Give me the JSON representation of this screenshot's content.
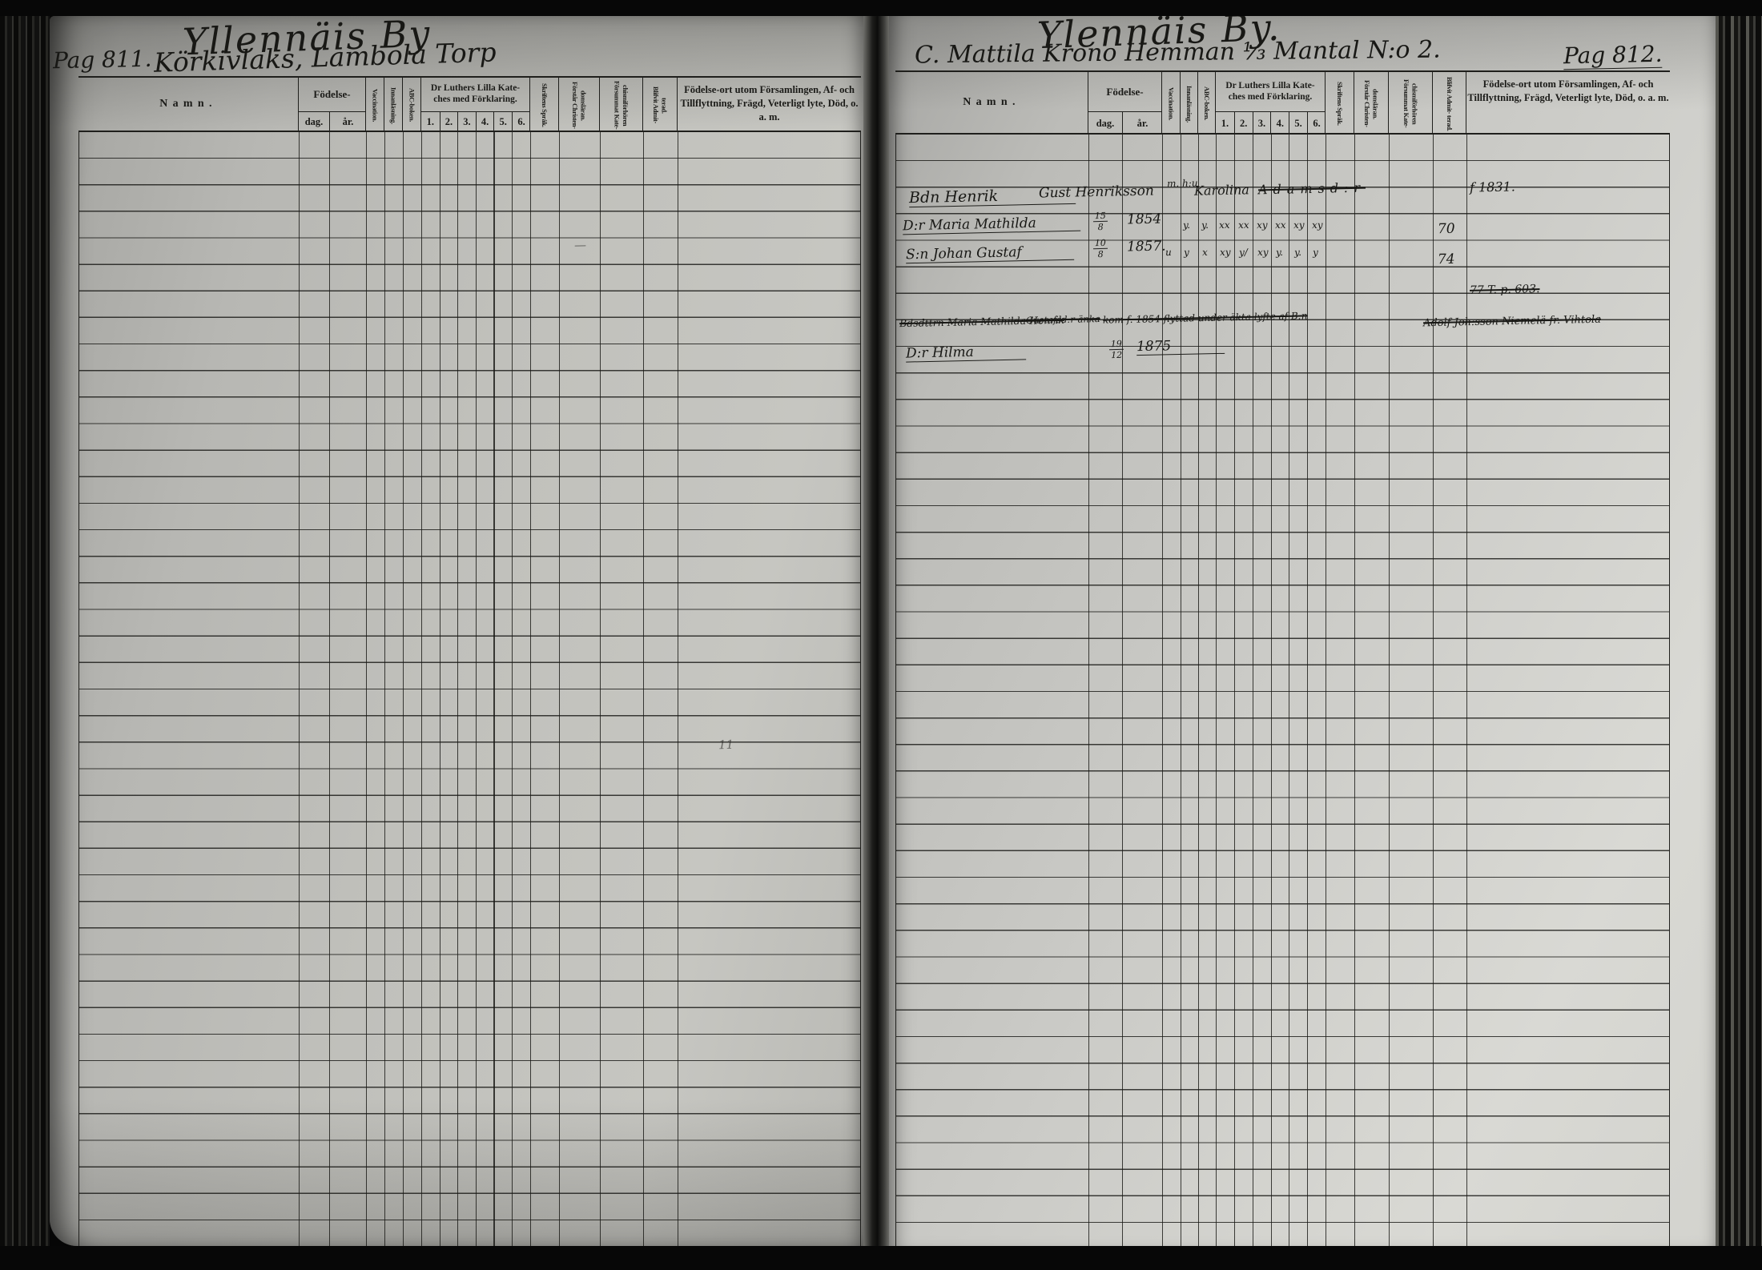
{
  "colors": {
    "ink": "#1b1b18",
    "line": "#1f1f1c",
    "linesoft": "rgba(24,24,21,0.82)",
    "paper_left": "#bfbfbb",
    "paper_right": "#d3d3ce",
    "frame": "#070707"
  },
  "table_header": {
    "namn": "Namn.",
    "fodelse": "Födelse-",
    "dag": "dag.",
    "ar": "år.",
    "vaccination": "Vaccination.",
    "innanlasning": "Innanläsning.",
    "abc": "ABC-boken.",
    "luthers": "Dr Luthers Lilla Kate- ches med Förklaring.",
    "luthers_cols": [
      "1.",
      "2.",
      "3.",
      "4.",
      "5.",
      "6."
    ],
    "skriftens": "Skriftens Språk.",
    "forstar": "Förstår Christen- domsläran.",
    "forsummat": "Försummat Kate- chismiförhören",
    "blifvit": "Blifvit Admit- terad.",
    "remarks": "Födelse-ort utom Församlingen, Af- och Tillflyttning, Frägd, Veterligt lyte, Död, o. a. m."
  },
  "left_page": {
    "village_title": "Yllennäis By",
    "pag": "Pag 811.",
    "holding_title": "Körkivlaks, Lambola Torp",
    "stray_dash": "—",
    "stray_note": "11"
  },
  "right_page": {
    "village_title": "Ylennäis By.",
    "holding_title": "C. Mattila Krono Hemman ⅓ Mantal N:o 2.",
    "pag": "Pag 812.",
    "entries": {
      "e1": {
        "name": "Bdn Henrik",
        "patronym": "Gust Henriksson",
        "mh": "m. h:u",
        "wife": "Karolina",
        "struck": "Adamsd:r",
        "remark": "f 1831."
      },
      "e2": {
        "name": "D:r Maria Mathilda",
        "dag_num": "15",
        "dag_den": "8",
        "ar": "1854",
        "marks": [
          "y.",
          "y.",
          "xx",
          "xx",
          "xy",
          "xx",
          "xy",
          "xy"
        ],
        "admit": "70"
      },
      "e3": {
        "name": "S:n Johan Gustaf",
        "dag_num": "10",
        "dag_den": "8",
        "ar": "1857.",
        "marks": [
          "u",
          "y",
          "x",
          "xy",
          "y/",
          "xy",
          "y.",
          "y.",
          "y"
        ],
        "admit": "74"
      },
      "e4": {
        "remark": "77 T. p. 603."
      },
      "e5": {
        "part1": "Bdsdttrn Maria Mathilda Henrik",
        "part2": "Gustafsd:r änka",
        "part3": "kom f. 1854 flyttad under äkta lyfte af B:n",
        "part4": "Adolf Joh:sson Niemelä fr. Vihtola"
      },
      "e6": {
        "name": "D:r Hilma",
        "dag_num": "19",
        "dag_den": "12",
        "ar": "1875"
      }
    }
  }
}
